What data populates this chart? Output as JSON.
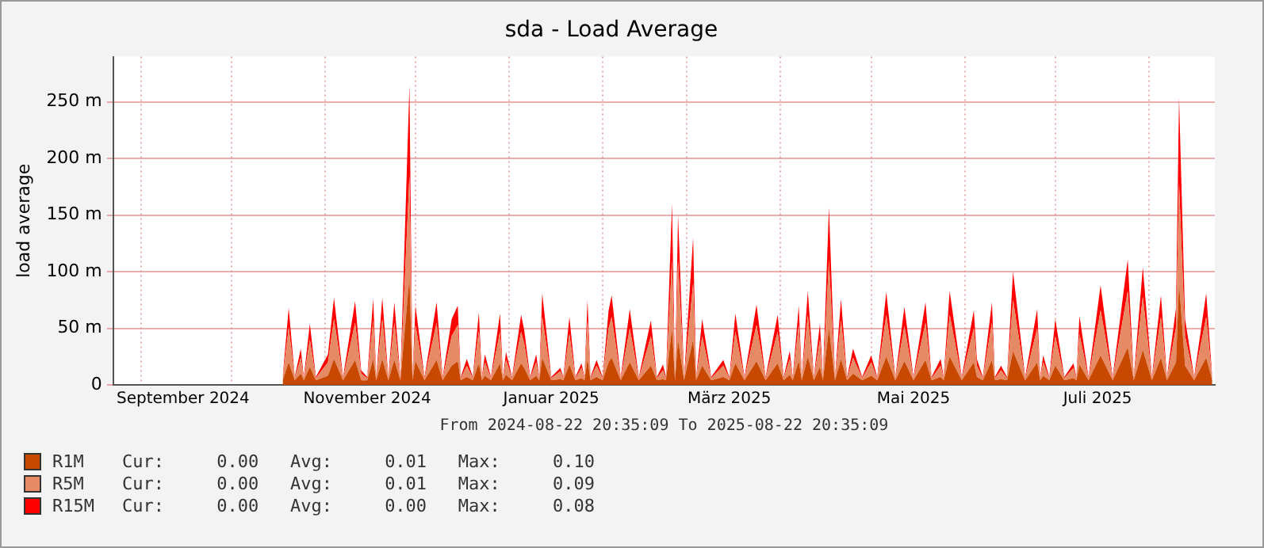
{
  "chart_data": {
    "type": "area",
    "stacked": true,
    "title": "sda - Load Average",
    "xlabel": "From 2024-08-22 20:35:09 To 2025-08-22 20:35:09",
    "ylabel": "load average",
    "legend": "bottom left",
    "grid": true,
    "xlim": [
      "2024-08-22T20:35",
      "2025-08-22T20:35"
    ],
    "xticks": [
      {
        "value": "2024-09-01",
        "label": null
      },
      {
        "value": "2024-09-15",
        "label": "September 2024"
      },
      {
        "value": "2024-10-01",
        "label": null
      },
      {
        "value": "2024-11-01",
        "label": null
      },
      {
        "value": "2024-11-15",
        "label": "November 2024"
      },
      {
        "value": "2024-12-01",
        "label": null
      },
      {
        "value": "2025-01-01",
        "label": null
      },
      {
        "value": "2025-01-15",
        "label": "Januar 2025"
      },
      {
        "value": "2025-02-01",
        "label": null
      },
      {
        "value": "2025-03-01",
        "label": null
      },
      {
        "value": "2025-03-15",
        "label": "März 2025"
      },
      {
        "value": "2025-04-01",
        "label": null
      },
      {
        "value": "2025-05-01",
        "label": null
      },
      {
        "value": "2025-05-15",
        "label": "Mai 2025"
      },
      {
        "value": "2025-06-01",
        "label": null
      },
      {
        "value": "2025-07-01",
        "label": null
      },
      {
        "value": "2025-07-15",
        "label": "Juli 2025"
      },
      {
        "value": "2025-08-01",
        "label": null
      }
    ],
    "ylim": [
      0,
      290
    ],
    "yticks": [
      0,
      {
        "value": 50,
        "label": "50 m"
      },
      {
        "value": 100,
        "label": "100 m"
      },
      {
        "value": 150,
        "label": "150 m"
      },
      {
        "value": 200,
        "label": "200 m"
      },
      {
        "value": 250,
        "label": "250 m"
      }
    ],
    "x": [
      "2024-10-18",
      "2024-10-20",
      "2024-10-22",
      "2024-10-24",
      "2024-10-25",
      "2024-10-27",
      "2024-10-29",
      "2024-11-02",
      "2024-11-04",
      "2024-11-07",
      "2024-11-11",
      "2024-11-13",
      "2024-11-15",
      "2024-11-17",
      "2024-11-18",
      "2024-11-20",
      "2024-11-22",
      "2024-11-24",
      "2024-11-26",
      "2024-11-29",
      "2024-11-30",
      "2024-12-01",
      "2024-12-04",
      "2024-12-08",
      "2024-12-10",
      "2024-12-13",
      "2024-12-15",
      "2024-12-16",
      "2024-12-18",
      "2024-12-20",
      "2024-12-22",
      "2024-12-23",
      "2024-12-24",
      "2024-12-26",
      "2024-12-29",
      "2024-12-30",
      "2024-12-31",
      "2025-01-02",
      "2025-01-05",
      "2025-01-06",
      "2025-01-08",
      "2025-01-10",
      "2025-01-11",
      "2025-01-12",
      "2025-01-15",
      "2025-01-18",
      "2025-01-19",
      "2025-01-21",
      "2025-01-23",
      "2025-01-25",
      "2025-01-26",
      "2025-01-27",
      "2025-01-28",
      "2025-01-30",
      "2025-02-01",
      "2025-02-03",
      "2025-02-04",
      "2025-02-07",
      "2025-02-10",
      "2025-02-13",
      "2025-02-17",
      "2025-02-19",
      "2025-02-21",
      "2025-02-22",
      "2025-02-24",
      "2025-02-25",
      "2025-02-26",
      "2025-02-28",
      "2025-03-03",
      "2025-03-04",
      "2025-03-06",
      "2025-03-09",
      "2025-03-13",
      "2025-03-15",
      "2025-03-17",
      "2025-03-20",
      "2025-03-24",
      "2025-03-27",
      "2025-03-31",
      "2025-04-02",
      "2025-04-04",
      "2025-04-05",
      "2025-04-07",
      "2025-04-08",
      "2025-04-10",
      "2025-04-12",
      "2025-04-14",
      "2025-04-15",
      "2025-04-17",
      "2025-04-19",
      "2025-04-21",
      "2025-04-23",
      "2025-04-25",
      "2025-04-28",
      "2025-05-01",
      "2025-05-03",
      "2025-05-06",
      "2025-05-09",
      "2025-05-12",
      "2025-05-15",
      "2025-05-19",
      "2025-05-21",
      "2025-05-24",
      "2025-05-25",
      "2025-05-27",
      "2025-05-31",
      "2025-06-04",
      "2025-06-05",
      "2025-06-07",
      "2025-06-10",
      "2025-06-11",
      "2025-06-13",
      "2025-06-15",
      "2025-06-17",
      "2025-06-21",
      "2025-06-25",
      "2025-06-26",
      "2025-06-27",
      "2025-06-29",
      "2025-07-01",
      "2025-07-04",
      "2025-07-07",
      "2025-07-08",
      "2025-07-09",
      "2025-07-12",
      "2025-07-16",
      "2025-07-20",
      "2025-07-25",
      "2025-07-27",
      "2025-07-30",
      "2025-08-02",
      "2025-08-05",
      "2025-08-07",
      "2025-08-10",
      "2025-08-11",
      "2025-08-13",
      "2025-08-16",
      "2025-08-20",
      "2025-08-22"
    ],
    "series": [
      {
        "name": "R1M",
        "color": "#c84800",
        "values": [
          4,
          20,
          4,
          10,
          4,
          16,
          4,
          8,
          23,
          4,
          22,
          4,
          4,
          23,
          4,
          23,
          4,
          22,
          4,
          95,
          4,
          21,
          4,
          22,
          4,
          17,
          21,
          4,
          7,
          4,
          19,
          4,
          8,
          4,
          19,
          4,
          9,
          4,
          19,
          15,
          4,
          8,
          4,
          24,
          4,
          5,
          4,
          18,
          4,
          6,
          4,
          23,
          4,
          7,
          4,
          20,
          24,
          4,
          20,
          4,
          17,
          4,
          5,
          4,
          50,
          4,
          40,
          4,
          40,
          4,
          17,
          4,
          7,
          4,
          19,
          4,
          21,
          4,
          19,
          4,
          9,
          4,
          21,
          4,
          25,
          4,
          16,
          4,
          50,
          4,
          23,
          4,
          10,
          4,
          8,
          4,
          25,
          4,
          21,
          4,
          22,
          4,
          7,
          4,
          25,
          4,
          20,
          7,
          4,
          22,
          4,
          5,
          4,
          30,
          4,
          20,
          4,
          8,
          4,
          17,
          4,
          6,
          4,
          18,
          4,
          26,
          4,
          33,
          4,
          31,
          4,
          24,
          4,
          20,
          90,
          17,
          4,
          24,
          4
        ]
      },
      {
        "name": "R5M",
        "color": "#e58a64",
        "values": [
          2,
          31,
          2,
          14,
          2,
          24,
          2,
          12,
          35,
          2,
          33,
          6,
          2,
          34,
          2,
          35,
          2,
          33,
          2,
          90,
          2,
          32,
          2,
          33,
          2,
          26,
          32,
          2,
          10,
          2,
          29,
          2,
          12,
          2,
          28,
          2,
          13,
          2,
          28,
          22,
          2,
          12,
          2,
          36,
          2,
          7,
          2,
          27,
          2,
          9,
          2,
          34,
          2,
          10,
          2,
          30,
          36,
          2,
          30,
          2,
          26,
          2,
          8,
          2,
          60,
          2,
          70,
          2,
          50,
          2,
          26,
          2,
          10,
          2,
          28,
          2,
          32,
          2,
          28,
          2,
          14,
          2,
          32,
          2,
          37,
          2,
          24,
          2,
          60,
          2,
          34,
          2,
          14,
          2,
          12,
          2,
          37,
          2,
          31,
          2,
          33,
          2,
          10,
          2,
          37,
          2,
          30,
          10,
          2,
          33,
          2,
          8,
          2,
          45,
          2,
          30,
          2,
          12,
          2,
          26,
          2,
          9,
          2,
          27,
          2,
          40,
          2,
          50,
          2,
          47,
          2,
          36,
          2,
          31,
          88,
          26,
          2,
          36,
          2
        ]
      },
      {
        "name": "R15M",
        "color": "#ff0000",
        "values": [
          1,
          17,
          1,
          8,
          1,
          14,
          1,
          7,
          19,
          1,
          19,
          3,
          1,
          19,
          1,
          19,
          1,
          18,
          1,
          80,
          1,
          17,
          1,
          18,
          1,
          15,
          17,
          1,
          6,
          1,
          16,
          1,
          7,
          1,
          16,
          1,
          7,
          1,
          15,
          12,
          1,
          7,
          1,
          21,
          1,
          3,
          1,
          15,
          1,
          4,
          1,
          18,
          1,
          5,
          1,
          16,
          19,
          1,
          17,
          1,
          14,
          1,
          5,
          1,
          50,
          1,
          40,
          1,
          40,
          1,
          15,
          1,
          5,
          1,
          16,
          1,
          18,
          1,
          15,
          1,
          7,
          1,
          17,
          1,
          21,
          1,
          14,
          1,
          47,
          1,
          19,
          1,
          8,
          1,
          6,
          1,
          20,
          1,
          17,
          1,
          18,
          1,
          6,
          1,
          21,
          1,
          16,
          6,
          1,
          18,
          1,
          4,
          1,
          25,
          1,
          17,
          1,
          6,
          1,
          15,
          1,
          4,
          1,
          16,
          1,
          22,
          1,
          28,
          1,
          26,
          1,
          19,
          1,
          17,
          76,
          15,
          1,
          21,
          1
        ]
      }
    ],
    "annotations": [
      "Cur:     0.00   Avg:     0.01   Max:     0.10",
      "Cur:     0.00   Avg:     0.01   Max:     0.09",
      "Cur:     0.00   Avg:     0.00   Max:     0.08"
    ]
  }
}
